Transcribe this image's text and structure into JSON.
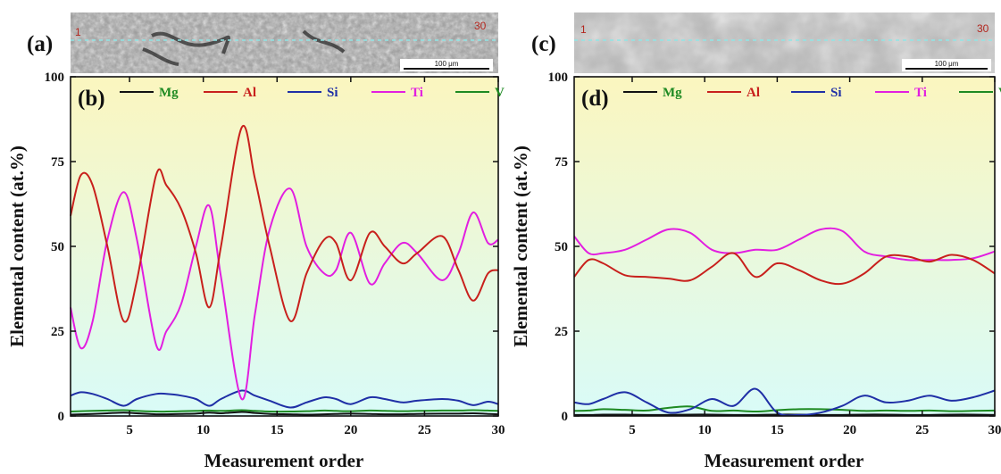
{
  "figure": {
    "panel_labels": [
      "(a)",
      "(b)",
      "(c)",
      "(d)"
    ],
    "micrographs": [
      {
        "start_label": "1",
        "end_label": "30",
        "scale_label": "100 μm"
      },
      {
        "start_label": "1",
        "end_label": "30",
        "scale_label": "100 μm"
      }
    ]
  },
  "colors": {
    "Mg": "#111111",
    "Al": "#c8201c",
    "Si": "#1f2fa6",
    "Ti": "#e21ee0",
    "V": "#1e8a22",
    "legend_text_Mg": "#1e8a22",
    "legend_text_Al": "#c8201c",
    "legend_text_Si": "#1f2fa6",
    "legend_text_Ti": "#e21ee0",
    "legend_text_V": "#1e8a22",
    "bg_top": "#fbf6bf",
    "bg_bottom": "#d9fbf8"
  },
  "chart_data": [
    {
      "type": "line",
      "panel": "(b)",
      "xlabel": "Measurement order",
      "ylabel": "Elemental content (at.%)",
      "xlim": [
        1,
        30
      ],
      "ylim": [
        0,
        100
      ],
      "xticks": [
        5,
        10,
        15,
        20,
        25,
        30
      ],
      "yticks": [
        0,
        25,
        50,
        75,
        100
      ],
      "legend": "top",
      "x": [
        1,
        1.7,
        2.5,
        3.5,
        4.6,
        5.5,
        6.8,
        7.5,
        8.5,
        9.5,
        10.4,
        11.2,
        12.6,
        13.5,
        14.5,
        15.9,
        17,
        18.2,
        19,
        20,
        21.3,
        22.3,
        23.5,
        24.5,
        26.2,
        27.3,
        28.3,
        29.3,
        30
      ],
      "series": [
        {
          "name": "Mg",
          "values": [
            0.4,
            0.5,
            0.6,
            0.8,
            1.0,
            0.8,
            0.5,
            0.5,
            0.6,
            0.7,
            1.0,
            0.8,
            1.2,
            0.9,
            0.6,
            0.5,
            0.4,
            0.5,
            0.6,
            0.7,
            0.6,
            0.5,
            0.5,
            0.6,
            0.7,
            0.7,
            0.8,
            0.6,
            0.5
          ]
        },
        {
          "name": "Al",
          "values": [
            59,
            71,
            68,
            50,
            28,
            40,
            71,
            68,
            61,
            48,
            32,
            50,
            85,
            70,
            50,
            28,
            42,
            52,
            51,
            40,
            54,
            50,
            45,
            48,
            53,
            43,
            34,
            42,
            43
          ]
        },
        {
          "name": "Si",
          "values": [
            6,
            7,
            6.5,
            5,
            3,
            5,
            6.5,
            6.5,
            6,
            5,
            3,
            5,
            7.5,
            6,
            4.5,
            2.5,
            4,
            5.5,
            5,
            3.5,
            5.5,
            5,
            4,
            4.5,
            5,
            4.5,
            3.2,
            4.2,
            3.5
          ]
        },
        {
          "name": "Ti",
          "values": [
            32,
            20,
            28,
            52,
            66,
            52,
            21,
            25,
            33,
            50,
            62,
            41,
            5,
            30,
            55,
            67,
            50,
            42,
            43,
            54,
            39,
            45,
            51,
            48,
            40,
            48,
            60,
            51,
            52
          ]
        },
        {
          "name": "V",
          "values": [
            1.3,
            1.4,
            1.5,
            1.6,
            1.7,
            1.5,
            1.3,
            1.3,
            1.4,
            1.5,
            1.6,
            1.5,
            1.7,
            1.5,
            1.3,
            1.3,
            1.4,
            1.6,
            1.5,
            1.4,
            1.6,
            1.5,
            1.4,
            1.5,
            1.6,
            1.6,
            1.7,
            1.6,
            1.5
          ]
        }
      ]
    },
    {
      "type": "line",
      "panel": "(d)",
      "xlabel": "Measurement order",
      "ylabel": "Elemental content (at.%)",
      "xlim": [
        1,
        30
      ],
      "ylim": [
        0,
        100
      ],
      "xticks": [
        5,
        10,
        15,
        20,
        25,
        30
      ],
      "yticks": [
        0,
        25,
        50,
        75,
        100
      ],
      "legend": "top",
      "x": [
        1,
        2,
        3,
        4.5,
        6,
        7.5,
        9,
        10.5,
        12,
        13.5,
        15,
        16.5,
        18,
        19.5,
        21,
        22.5,
        24,
        25.5,
        27,
        28.5,
        30
      ],
      "series": [
        {
          "name": "Mg",
          "values": [
            0.3,
            0.3,
            0.4,
            0.4,
            0.3,
            0.3,
            0.4,
            0.4,
            0.3,
            0.3,
            0.4,
            0.4,
            0.3,
            0.3,
            0.4,
            0.4,
            0.3,
            0.3,
            0.4,
            0.4,
            0.3
          ]
        },
        {
          "name": "Al",
          "values": [
            41,
            46,
            45,
            41.5,
            41,
            40.5,
            40,
            44,
            48,
            41,
            45,
            43,
            40,
            39,
            42,
            47,
            47,
            45.5,
            47.5,
            46,
            42
          ]
        },
        {
          "name": "Si",
          "values": [
            4,
            3.5,
            5,
            7,
            4,
            1,
            2,
            5,
            3,
            8,
            1,
            0.3,
            1,
            3,
            6,
            4,
            4.5,
            6,
            4.5,
            5.5,
            7.5
          ]
        },
        {
          "name": "Ti",
          "values": [
            53,
            48,
            48,
            49,
            52,
            55,
            54,
            49,
            48,
            49,
            49,
            52,
            55,
            54.5,
            48.5,
            47,
            46,
            46,
            46,
            46.5,
            48.5
          ]
        },
        {
          "name": "V",
          "values": [
            1.5,
            1.6,
            2.0,
            1.8,
            1.6,
            2.4,
            2.8,
            1.5,
            1.6,
            1.3,
            1.7,
            2.0,
            2.0,
            1.8,
            1.5,
            1.6,
            1.5,
            1.6,
            1.4,
            1.5,
            1.6
          ]
        }
      ]
    }
  ]
}
